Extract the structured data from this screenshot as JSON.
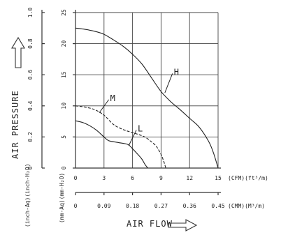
{
  "chart_data": {
    "type": "line",
    "title": "",
    "xlabel": "AIR FLOW",
    "ylabel": "AIR PRESSURE",
    "x_unit_primary": "(CFM)(ft³/m)",
    "x_unit_secondary": "(CMM)(M³/m)",
    "y_unit_inch": "(inch-Aq)(inch-H₂O)",
    "y_unit_mm": "(mm-Aq)(mm-H₂O)",
    "xlim": [
      0,
      15
    ],
    "ylim_mm": [
      0,
      25
    ],
    "ylim_inch": [
      0,
      1.0
    ],
    "x_ticks": [
      "0",
      "3",
      "6",
      "9",
      "12",
      "15"
    ],
    "x_ticks_secondary": [
      "0",
      "0.09",
      "0.18",
      "0.27",
      "0.36",
      "0.45"
    ],
    "y_ticks_mm": [
      "0",
      "5",
      "10",
      "15",
      "20",
      "25"
    ],
    "y_ticks_inch": [
      "0",
      "0.2",
      "0.4",
      "0.6",
      "0.8",
      "1.0"
    ],
    "grid": true,
    "series": [
      {
        "name": "H",
        "style": "solid",
        "x": [
          0,
          1,
          2,
          3,
          4,
          5,
          6,
          7,
          8,
          9,
          10,
          11,
          12,
          13,
          14,
          14.5,
          15
        ],
        "y": [
          22.5,
          22.3,
          22.0,
          21.5,
          20.6,
          19.6,
          18.3,
          16.7,
          14.5,
          12.3,
          10.7,
          9.4,
          8.0,
          6.6,
          4.3,
          2.5,
          0
        ]
      },
      {
        "name": "M",
        "style": "dashed",
        "x": [
          0,
          1,
          2,
          3,
          4,
          5,
          6,
          7,
          7.5,
          8,
          8.5,
          9,
          9.3,
          9.5
        ],
        "y": [
          10.0,
          9.8,
          9.4,
          8.5,
          7.0,
          6.2,
          5.7,
          5.2,
          4.8,
          4.2,
          3.5,
          2.2,
          1.0,
          0
        ]
      },
      {
        "name": "L",
        "style": "solid",
        "x": [
          0,
          0.8,
          1.5,
          2.2,
          3.0,
          3.5,
          4.5,
          5.5,
          6.0,
          6.5,
          7.0,
          7.3,
          7.6
        ],
        "y": [
          7.6,
          7.3,
          6.8,
          6.1,
          5.0,
          4.4,
          4.1,
          3.8,
          3.1,
          2.3,
          1.4,
          0.6,
          0
        ]
      }
    ]
  }
}
